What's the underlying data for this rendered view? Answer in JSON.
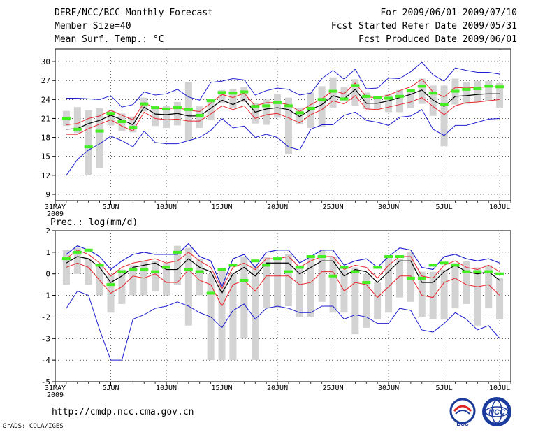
{
  "header": {
    "title": "DERF/NCC/BCC Monthly Forecast",
    "member_size": "Member Size=40",
    "variable": "Mean Surf. Temp.: °C",
    "for_range": "For 2009/06/01-2009/07/10",
    "fcst_started": "Fcst Started Refer Date 2009/05/31",
    "fcst_produced": "Fcst Produced Date 2009/06/01"
  },
  "footer": {
    "url": "http://cmdp.ncc.cma.gov.cn",
    "grads_credit": "GrADS: COLA/IGES",
    "logos": [
      {
        "name": "BCC",
        "icon": "bcc-logo-icon",
        "color": "#1a3a9c"
      },
      {
        "name": "NCC",
        "icon": "ncc-logo-icon",
        "color": "#1a3a9c"
      }
    ]
  },
  "colors": {
    "ensemble_mean": "#000000",
    "spread_band": "#e8242c",
    "extreme_envelope": "#1f1fd0",
    "observation_box": "#d3d3d3",
    "observation_mean": "#44ee22"
  },
  "chart_data": [
    {
      "type": "line",
      "title": "Mean Surf. Temp.: °C",
      "xlabel": "",
      "ylabel": "",
      "x_tick_labels": [
        "31MAY\n2009",
        "5JUN",
        "10JUN",
        "15JUN",
        "20JUN",
        "25JUN",
        "30JUN",
        "5JUL",
        "10JUL"
      ],
      "x_tick_days": [
        0,
        5,
        10,
        15,
        20,
        25,
        30,
        35,
        40
      ],
      "ylim": [
        8,
        32
      ],
      "yticks": [
        9,
        12,
        15,
        18,
        21,
        24,
        27,
        30
      ],
      "grid": true,
      "days": [
        1,
        2,
        3,
        4,
        5,
        6,
        7,
        8,
        9,
        10,
        11,
        12,
        13,
        14,
        15,
        16,
        17,
        18,
        19,
        20,
        21,
        22,
        23,
        24,
        25,
        26,
        27,
        28,
        29,
        30,
        31,
        32,
        33,
        34,
        35,
        36,
        37,
        38,
        39,
        40
      ],
      "series": [
        {
          "name": "ensemble mean",
          "color": "#000000",
          "values": [
            19.3,
            19.4,
            20.2,
            20.7,
            21.5,
            20.8,
            20.0,
            22.8,
            21.7,
            21.6,
            21.8,
            21.4,
            21.4,
            22.6,
            23.9,
            23.2,
            24.0,
            22.0,
            22.5,
            22.7,
            22.4,
            21.3,
            22.4,
            23.2,
            24.6,
            24.1,
            25.6,
            23.4,
            23.4,
            23.8,
            24.3,
            24.8,
            25.5,
            23.9,
            22.9,
            24.5,
            24.6,
            24.8,
            24.9,
            24.9
          ]
        },
        {
          "name": "upper spread",
          "color": "#e8242c",
          "values": [
            20.0,
            20.2,
            21.0,
            21.4,
            22.3,
            21.5,
            20.8,
            23.5,
            22.6,
            22.5,
            22.7,
            22.3,
            22.1,
            23.4,
            24.8,
            24.3,
            25.0,
            23.0,
            23.5,
            23.5,
            23.2,
            22.1,
            23.2,
            24.1,
            25.4,
            24.9,
            26.6,
            24.4,
            24.3,
            24.7,
            25.4,
            26.0,
            27.2,
            25.2,
            24.4,
            25.9,
            25.8,
            25.9,
            26.0,
            26.0
          ]
        },
        {
          "name": "lower spread",
          "color": "#e8242c",
          "values": [
            18.5,
            18.5,
            19.4,
            20.1,
            20.8,
            19.8,
            19.0,
            22.0,
            21.0,
            20.8,
            20.9,
            20.6,
            20.6,
            21.7,
            23.0,
            22.4,
            23.0,
            21.0,
            21.6,
            21.8,
            21.1,
            20.3,
            21.6,
            22.4,
            23.8,
            23.3,
            24.6,
            22.5,
            22.4,
            22.8,
            23.2,
            23.6,
            24.3,
            22.9,
            21.6,
            23.0,
            23.5,
            23.6,
            23.8,
            24.0
          ]
        },
        {
          "name": "maximum",
          "color": "#1f1fd0",
          "values": [
            24.2,
            24.2,
            24.1,
            24.0,
            24.6,
            22.8,
            23.2,
            25.2,
            24.7,
            24.9,
            25.6,
            24.4,
            23.9,
            26.7,
            26.9,
            27.3,
            27.1,
            24.7,
            25.4,
            25.8,
            25.6,
            24.7,
            25.0,
            27.3,
            28.6,
            27.2,
            28.8,
            25.7,
            25.8,
            27.4,
            27.3,
            28.4,
            29.9,
            27.9,
            26.9,
            29.0,
            28.6,
            28.3,
            28.3,
            28.0
          ]
        },
        {
          "name": "minimum",
          "color": "#1f1fd0",
          "values": [
            12.0,
            14.5,
            16.0,
            17.0,
            18.2,
            17.5,
            16.5,
            19.0,
            17.2,
            17.0,
            17.0,
            17.5,
            18.0,
            19.1,
            21.0,
            19.5,
            19.8,
            18.0,
            18.5,
            18.0,
            16.5,
            16.0,
            19.3,
            20.0,
            20.0,
            21.5,
            22.0,
            20.7,
            20.4,
            19.9,
            21.2,
            21.4,
            22.4,
            19.3,
            18.3,
            19.9,
            19.9,
            20.4,
            20.9,
            21.0
          ]
        }
      ],
      "obs_box_top": [
        22.2,
        22.8,
        22.3,
        22.6,
        22.2,
        21.8,
        21.3,
        24.3,
        22.8,
        23.0,
        23.6,
        26.8,
        22.9,
        24.0,
        25.5,
        25.7,
        26.0,
        23.4,
        24.0,
        24.8,
        24.3,
        22.6,
        25.1,
        26.1,
        27.5,
        25.9,
        27.2,
        25.1,
        24.4,
        24.8,
        25.5,
        25.6,
        27.3,
        26.2,
        26.2,
        27.3,
        26.8,
        26.9,
        26.9,
        26.6
      ],
      "obs_box_bottom": [
        19.8,
        18.7,
        12.0,
        13.2,
        19.9,
        19.0,
        18.8,
        22.1,
        19.8,
        19.5,
        19.9,
        17.5,
        19.5,
        20.7,
        23.4,
        22.6,
        23.6,
        20.2,
        20.0,
        21.1,
        15.3,
        20.1,
        19.5,
        19.7,
        22.7,
        23.7,
        23.0,
        22.5,
        22.5,
        22.0,
        22.0,
        22.6,
        23.3,
        21.4,
        16.6,
        23.2,
        23.3,
        23.6,
        23.7,
        22.7
      ],
      "obs_mean": [
        21.0,
        19.3,
        16.5,
        19.0,
        21.8,
        20.5,
        19.6,
        23.3,
        22.7,
        22.5,
        22.7,
        22.4,
        21.5,
        23.8,
        25.1,
        25.0,
        25.2,
        22.9,
        23.0,
        23.5,
        23.0,
        21.9,
        22.6,
        24.0,
        25.3,
        24.1,
        26.2,
        24.5,
        24.3,
        24.2,
        24.5,
        25.4,
        26.1,
        25.0,
        23.2,
        25.3,
        25.6,
        25.7,
        26.1,
        26.0
      ]
    },
    {
      "type": "line",
      "title": "Prec.: log(mm/d)",
      "xlabel": "",
      "ylabel": "",
      "x_tick_labels": [
        "31MAY\n2009",
        "5JUN",
        "10JUN",
        "15JUN",
        "20JUN",
        "25JUN",
        "30JUN",
        "5JUL",
        "10JUL"
      ],
      "x_tick_days": [
        0,
        5,
        10,
        15,
        20,
        25,
        30,
        35,
        40
      ],
      "ylim": [
        -5,
        2
      ],
      "yticks": [
        -5,
        -4,
        -3,
        -2,
        -1,
        0,
        1,
        2
      ],
      "grid": true,
      "days": [
        1,
        2,
        3,
        4,
        5,
        6,
        7,
        8,
        9,
        10,
        11,
        12,
        13,
        14,
        15,
        16,
        17,
        18,
        19,
        20,
        21,
        22,
        23,
        24,
        25,
        26,
        27,
        28,
        29,
        30,
        31,
        32,
        33,
        34,
        35,
        36,
        37,
        38,
        39,
        40
      ],
      "series": [
        {
          "name": "ensemble mean",
          "color": "#000000",
          "values": [
            0.5,
            0.8,
            0.7,
            0.3,
            -0.4,
            -0.1,
            0.3,
            0.4,
            0.5,
            0.2,
            0.2,
            0.7,
            0.3,
            0.1,
            -0.9,
            0.0,
            0.3,
            -0.1,
            0.5,
            0.5,
            0.5,
            0.0,
            0.3,
            0.6,
            0.6,
            -0.1,
            0.2,
            0.1,
            -0.4,
            0.1,
            0.6,
            0.6,
            -0.4,
            -0.4,
            0.1,
            0.4,
            0.1,
            0.0,
            0.1,
            -0.3
          ]
        },
        {
          "name": "upper spread",
          "color": "#e8242c",
          "values": [
            0.7,
            1.1,
            0.9,
            0.5,
            -0.1,
            0.3,
            0.5,
            0.6,
            0.7,
            0.5,
            0.6,
            1.0,
            0.6,
            0.3,
            -0.7,
            0.3,
            0.5,
            0.2,
            0.7,
            0.7,
            0.8,
            0.3,
            0.6,
            0.8,
            0.8,
            0.2,
            0.4,
            0.3,
            -0.2,
            0.4,
            0.8,
            0.8,
            -0.1,
            -0.2,
            0.4,
            0.6,
            0.3,
            0.2,
            0.4,
            0.1
          ]
        },
        {
          "name": "lower spread",
          "color": "#e8242c",
          "values": [
            0.3,
            0.5,
            0.3,
            -0.3,
            -0.9,
            -0.6,
            -0.1,
            -0.2,
            0.0,
            -0.4,
            -0.4,
            0.2,
            -0.3,
            -0.5,
            -1.5,
            -0.5,
            -0.3,
            -0.8,
            -0.1,
            -0.1,
            -0.1,
            -0.5,
            -0.4,
            0.1,
            0.1,
            -0.8,
            -0.4,
            -0.5,
            -1.1,
            -0.6,
            -0.1,
            -0.1,
            -1.0,
            -1.1,
            -0.4,
            -0.2,
            -0.5,
            -0.6,
            -0.5,
            -1.0
          ]
        },
        {
          "name": "maximum",
          "color": "#1f1fd0",
          "values": [
            0.9,
            1.3,
            1.1,
            0.8,
            0.2,
            0.6,
            0.9,
            1.0,
            0.9,
            0.9,
            0.9,
            1.4,
            0.8,
            0.6,
            -0.6,
            0.7,
            0.9,
            0.3,
            1.0,
            1.1,
            1.1,
            0.5,
            0.8,
            1.1,
            1.1,
            0.4,
            0.6,
            0.7,
            0.3,
            0.8,
            1.2,
            1.1,
            0.3,
            0.2,
            0.8,
            0.9,
            0.7,
            0.6,
            0.7,
            0.5
          ]
        },
        {
          "name": "minimum",
          "color": "#1f1fd0",
          "values": [
            -1.6,
            -0.8,
            -1.0,
            -2.6,
            -4.0,
            -4.0,
            -2.1,
            -1.9,
            -1.6,
            -1.5,
            -1.3,
            -1.5,
            -1.8,
            -2.0,
            -2.5,
            -1.7,
            -1.4,
            -2.1,
            -1.6,
            -1.5,
            -1.6,
            -1.8,
            -1.8,
            -1.5,
            -1.5,
            -2.1,
            -1.9,
            -2.0,
            -2.3,
            -2.3,
            -1.6,
            -1.7,
            -2.6,
            -2.7,
            -2.3,
            -1.8,
            -2.1,
            -2.6,
            -2.4,
            -3.0
          ]
        },
        {
          "name": "maximum",
          "color": "#1f1fd0",
          "values": [
            0.9,
            1.3,
            1.1,
            0.8,
            0.2,
            0.6,
            0.9,
            1.0,
            0.9,
            0.9,
            0.9,
            1.4,
            0.8,
            0.6,
            -0.6,
            0.7,
            0.9,
            0.3,
            1.0,
            1.1,
            1.1,
            0.5,
            0.8,
            1.1,
            1.1,
            0.4,
            0.6,
            0.7,
            0.3,
            0.8,
            1.2,
            1.1,
            0.3,
            0.2,
            0.8,
            0.9,
            0.7,
            0.6,
            0.7,
            0.5
          ]
        }
      ],
      "obs_box_top": [
        1.1,
        1.2,
        0.7,
        0.4,
        0.0,
        0.2,
        0.4,
        0.6,
        0.6,
        0.5,
        1.3,
        1.2,
        0.7,
        0.0,
        0.2,
        0.0,
        0.8,
        0.4,
        0.8,
        0.7,
        0.9,
        0.4,
        0.8,
        1.1,
        0.8,
        0.2,
        0.3,
        0.0,
        -0.4,
        0.8,
        0.7,
        1.0,
        0.1,
        0.1,
        0.2,
        0.5,
        0.6,
        0.3,
        0.4,
        -0.2
      ],
      "obs_box_bottom": [
        -0.5,
        0.0,
        -0.5,
        -1.0,
        -1.8,
        -1.4,
        -1.0,
        -1.0,
        -0.8,
        -1.0,
        -0.5,
        -2.4,
        -1.0,
        -4.0,
        -4.0,
        -4.0,
        -3.0,
        -4.0,
        -1.6,
        -1.6,
        -1.5,
        -2.0,
        -2.0,
        -1.3,
        -1.8,
        -1.8,
        -2.8,
        -2.5,
        -2.1,
        -1.8,
        -1.1,
        -1.3,
        -2.0,
        -2.1,
        -2.1,
        -1.6,
        -1.4,
        -2.4,
        -1.6,
        -2.1
      ],
      "obs_mean": [
        0.7,
        1.0,
        1.1,
        0.4,
        -0.5,
        0.1,
        0.2,
        0.2,
        0.1,
        0.3,
        1.0,
        0.2,
        0.1,
        -0.9,
        0.2,
        0.4,
        -0.3,
        0.6,
        0.4,
        0.7,
        0.1,
        0.3,
        0.8,
        0.8,
        -0.1,
        0.3,
        0.1,
        -0.4,
        0.3,
        0.8,
        0.8,
        -0.2,
        -0.2,
        0.4,
        0.5,
        0.4,
        0.1,
        0.1,
        0.1,
        0.0
      ]
    }
  ]
}
